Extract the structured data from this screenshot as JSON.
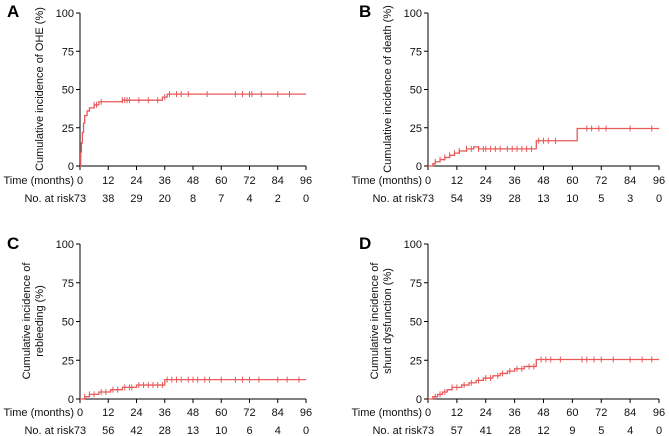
{
  "figure": {
    "time_row_label": "Time (months)",
    "risk_row_label": "No. at risk",
    "line_color": "#e8595a"
  },
  "chart_data": [
    {
      "type": "line",
      "panel": "A",
      "ylabel": [
        "Cumulative incidence of OHE (%)"
      ],
      "xlim": [
        0,
        96
      ],
      "ylim": [
        0,
        100
      ],
      "x_ticks": [
        0,
        12,
        24,
        36,
        48,
        60,
        72,
        84,
        96
      ],
      "y_ticks": [
        0,
        25,
        50,
        75,
        100
      ],
      "series": [
        {
          "x": [
            0,
            0.3,
            0.6,
            1,
            1.5,
            2,
            3,
            4,
            6,
            8,
            18,
            35,
            37,
            96
          ],
          "y": [
            0,
            9,
            15,
            22,
            28,
            33,
            36,
            38,
            40,
            42,
            43,
            45,
            47,
            47
          ]
        }
      ],
      "censor_times": [
        6,
        7,
        9,
        18,
        19,
        20,
        21,
        25,
        29,
        33,
        36,
        38,
        41,
        43,
        46,
        54,
        66,
        69,
        72,
        73,
        77,
        84,
        89
      ],
      "at_risk": [
        73,
        38,
        29,
        20,
        8,
        7,
        4,
        2,
        0
      ]
    },
    {
      "type": "line",
      "panel": "B",
      "ylabel": [
        "Cumulative incidence of death (%)"
      ],
      "xlim": [
        0,
        96
      ],
      "ylim": [
        0,
        100
      ],
      "x_ticks": [
        0,
        12,
        24,
        36,
        48,
        60,
        72,
        84,
        96
      ],
      "y_ticks": [
        0,
        25,
        50,
        75,
        100
      ],
      "series": [
        {
          "x": [
            0,
            2,
            3,
            5,
            7,
            9,
            11,
            13,
            16,
            19,
            21,
            45,
            62,
            96
          ],
          "y": [
            0,
            1.5,
            2.8,
            4.2,
            5.6,
            7,
            8.4,
            9.8,
            11.2,
            12.5,
            11.2,
            16.5,
            24.5,
            24.5
          ]
        }
      ],
      "censor_times": [
        3,
        5,
        7,
        9,
        11,
        13,
        16,
        18,
        21,
        23,
        24,
        26,
        28,
        30,
        33,
        35,
        37,
        39,
        41,
        43,
        46,
        48,
        50,
        53,
        66,
        68,
        71,
        74,
        84,
        93
      ],
      "at_risk": [
        73,
        54,
        39,
        28,
        13,
        10,
        5,
        3,
        0
      ]
    },
    {
      "type": "line",
      "panel": "C",
      "ylabel": [
        "Cumulative incidence of",
        "rebleeding (%)"
      ],
      "xlim": [
        0,
        96
      ],
      "ylim": [
        0,
        100
      ],
      "x_ticks": [
        0,
        12,
        24,
        36,
        48,
        60,
        72,
        84,
        96
      ],
      "y_ticks": [
        0,
        25,
        50,
        75,
        100
      ],
      "series": [
        {
          "x": [
            0,
            2,
            4,
            8,
            13,
            18,
            24,
            36,
            96
          ],
          "y": [
            0,
            1.5,
            3,
            4.5,
            6,
            7.5,
            9,
            12.5,
            12.5
          ]
        }
      ],
      "censor_times": [
        2,
        4,
        6,
        9,
        11,
        14,
        16,
        19,
        21,
        22,
        25,
        27,
        29,
        31,
        33,
        35,
        37,
        39,
        41,
        43,
        46,
        48,
        50,
        53,
        55,
        60,
        66,
        69,
        72,
        76,
        84,
        88,
        93
      ],
      "at_risk": [
        73,
        56,
        42,
        28,
        13,
        10,
        6,
        4,
        0
      ]
    },
    {
      "type": "line",
      "panel": "D",
      "ylabel": [
        "Cumulative incidence of",
        "shunt dysfunction (%)"
      ],
      "xlim": [
        0,
        96
      ],
      "ylim": [
        0,
        100
      ],
      "x_ticks": [
        0,
        12,
        24,
        36,
        48,
        60,
        72,
        84,
        96
      ],
      "y_ticks": [
        0,
        25,
        50,
        75,
        100
      ],
      "series": [
        {
          "x": [
            0,
            2,
            4,
            6,
            8,
            10,
            14,
            17,
            20,
            23,
            27,
            30,
            33,
            36,
            40,
            45,
            96
          ],
          "y": [
            0,
            1.5,
            3,
            4.5,
            6,
            7.5,
            9,
            10.5,
            12,
            13.5,
            15,
            16.5,
            18,
            19.5,
            21,
            25.5,
            25.5
          ]
        }
      ],
      "censor_times": [
        3,
        5,
        7,
        10,
        12,
        15,
        18,
        21,
        24,
        26,
        29,
        31,
        34,
        37,
        39,
        42,
        44,
        47,
        49,
        51,
        55,
        64,
        66,
        69,
        72,
        77,
        84,
        89,
        93
      ],
      "at_risk": [
        73,
        57,
        41,
        28,
        12,
        9,
        5,
        4,
        0
      ]
    }
  ]
}
